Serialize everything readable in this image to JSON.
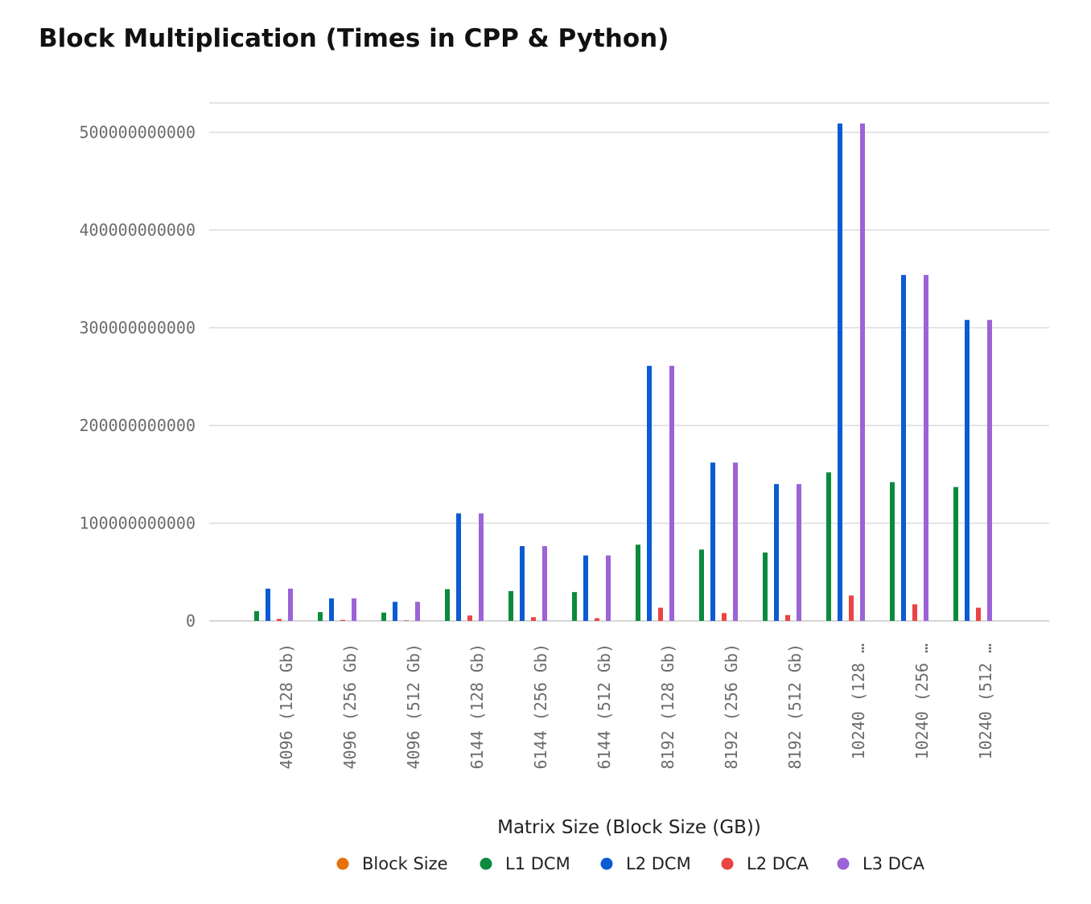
{
  "chart_data": {
    "type": "bar",
    "title": "Block Multiplication (Times in CPP & Python)",
    "xlabel": "Matrix Size (Block Size (GB))",
    "ylabel": "",
    "ylim": [
      0,
      530000000000
    ],
    "yticks": [
      0,
      100000000000,
      200000000000,
      300000000000,
      400000000000,
      500000000000
    ],
    "ytick_labels": [
      "0",
      "100000000000",
      "200000000000",
      "300000000000",
      "400000000000",
      "500000000000"
    ],
    "grid": true,
    "legend_position": "bottom",
    "categories": [
      "4096 (128 Gb)",
      "4096 (256 Gb)",
      "4096 (512 Gb)",
      "6144 (128 Gb)",
      "6144 (256 Gb)",
      "6144 (512 Gb)",
      "8192 (128 Gb)",
      "8192 (256 Gb)",
      "8192 (512 Gb)",
      "10240 (128 …",
      "10240 (256 …",
      "10240 (512 …"
    ],
    "series": [
      {
        "name": "Block Size",
        "color": "#e8710a",
        "values": [
          128,
          256,
          512,
          128,
          256,
          512,
          128,
          256,
          512,
          128,
          256,
          512
        ]
      },
      {
        "name": "L1 DCM",
        "color": "#0b8a3e",
        "values": [
          10000000000,
          9000000000,
          8500000000,
          32500000000,
          30500000000,
          29500000000,
          78000000000,
          73000000000,
          70000000000,
          152000000000,
          142000000000,
          137000000000
        ]
      },
      {
        "name": "L2 DCM",
        "color": "#0b5bd3",
        "values": [
          33000000000,
          23000000000,
          19500000000,
          110000000000,
          76500000000,
          67000000000,
          261000000000,
          162000000000,
          140000000000,
          509000000000,
          354000000000,
          308000000000
        ]
      },
      {
        "name": "L2 DCA",
        "color": "#ea4343",
        "values": [
          2000000000,
          1000000000,
          600000000,
          5500000000,
          3800000000,
          2800000000,
          13500000000,
          8000000000,
          6000000000,
          26000000000,
          17000000000,
          13500000000
        ]
      },
      {
        "name": "L3 DCA",
        "color": "#9c63d8",
        "values": [
          33000000000,
          23000000000,
          19500000000,
          110000000000,
          76500000000,
          67000000000,
          261000000000,
          162000000000,
          140000000000,
          509000000000,
          354000000000,
          308000000000
        ]
      }
    ]
  }
}
